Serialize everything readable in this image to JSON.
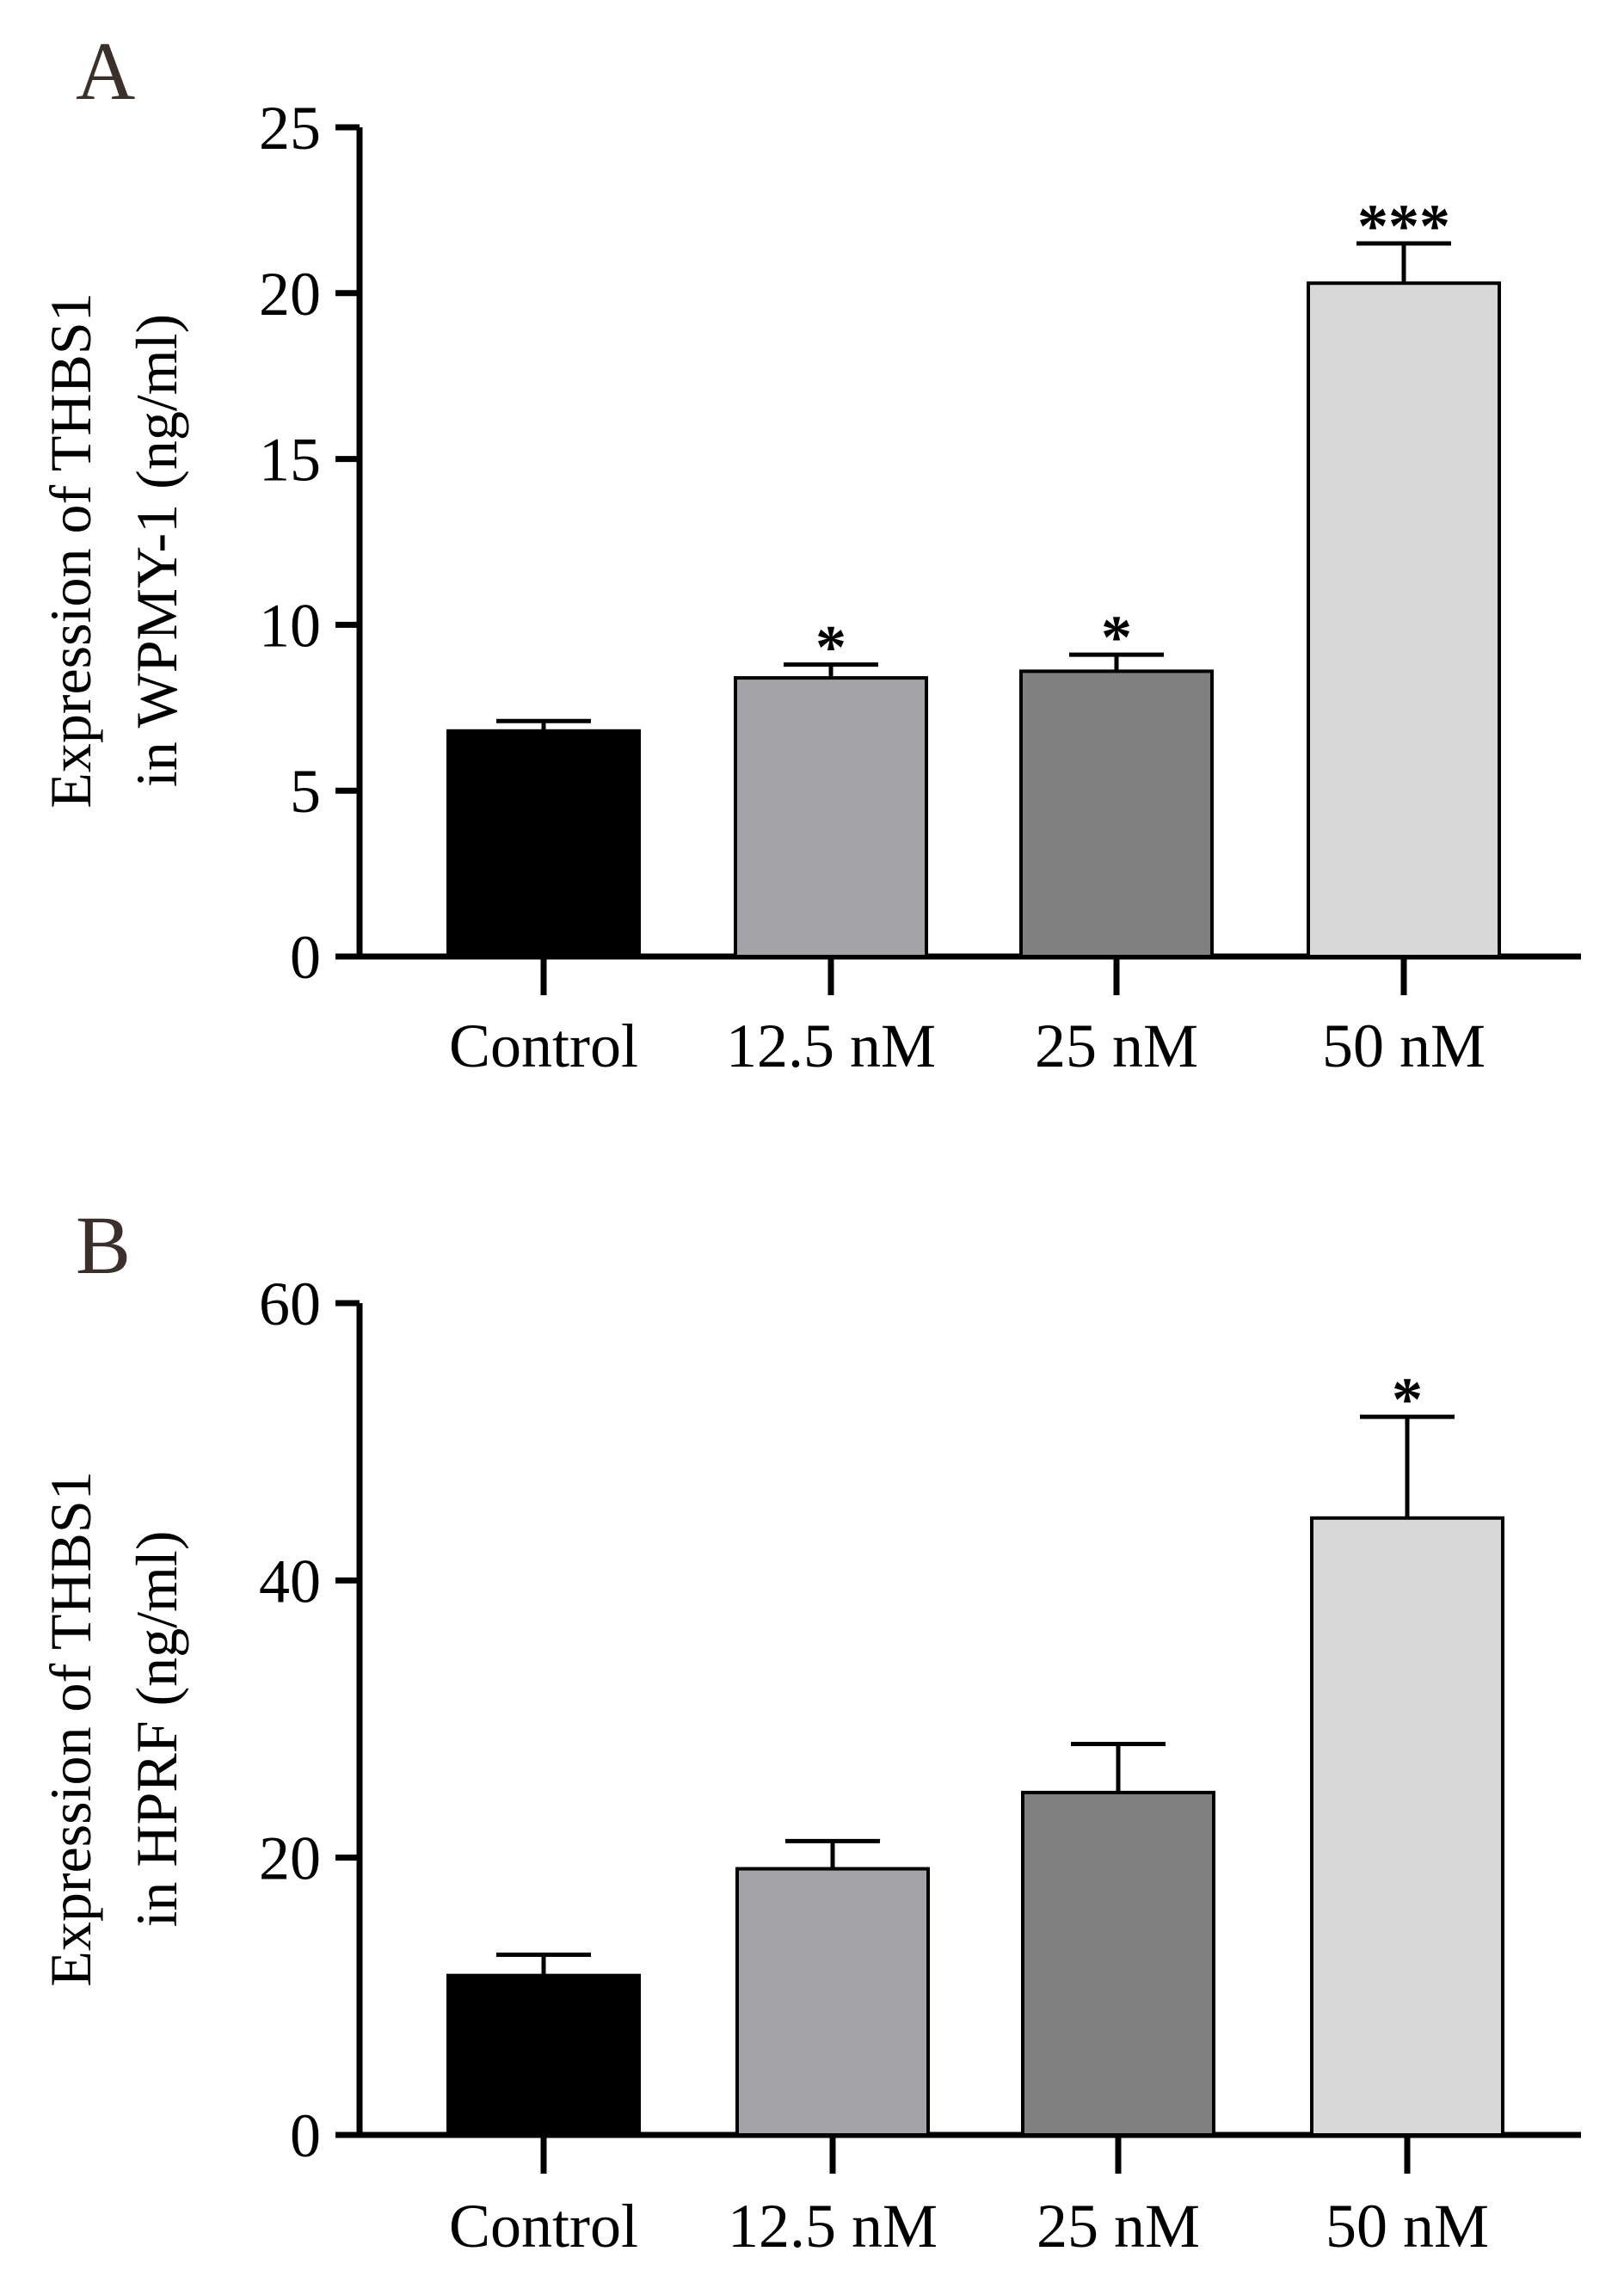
{
  "chart_data": [
    {
      "panel": "A",
      "type": "bar",
      "categories": [
        "Control",
        "12.5 nM",
        "25 nM",
        "50 nM"
      ],
      "values": [
        6.8,
        8.4,
        8.6,
        20.3
      ],
      "errors": [
        0.3,
        0.4,
        0.5,
        1.2
      ],
      "colors": [
        "#000000",
        "#a4a4a8",
        "#808080",
        "#d8d8d8"
      ],
      "significance": [
        "",
        "*",
        "*",
        "***"
      ],
      "ylabel_line1": "Expression of THBS1",
      "ylabel_line2": "in WPMY-1 (ng/ml)",
      "xlabel": "",
      "ylim": [
        0,
        25
      ],
      "yticks": [
        0,
        5,
        10,
        15,
        20,
        25
      ]
    },
    {
      "panel": "B",
      "type": "bar",
      "categories": [
        "Control",
        "12.5 nM",
        "25 nM",
        "50 nM"
      ],
      "values": [
        11.5,
        19.2,
        24.7,
        44.5
      ],
      "errors": [
        1.5,
        2.0,
        3.5,
        7.3
      ],
      "colors": [
        "#000000",
        "#a4a4a8",
        "#808080",
        "#d8d8d8"
      ],
      "significance": [
        "",
        "",
        "",
        "*"
      ],
      "ylabel_line1": "Expression of THBS1",
      "ylabel_line2": "in HPRF (ng/ml)",
      "xlabel": "",
      "ylim": [
        0,
        60
      ],
      "yticks": [
        0,
        20,
        40,
        60
      ]
    }
  ]
}
